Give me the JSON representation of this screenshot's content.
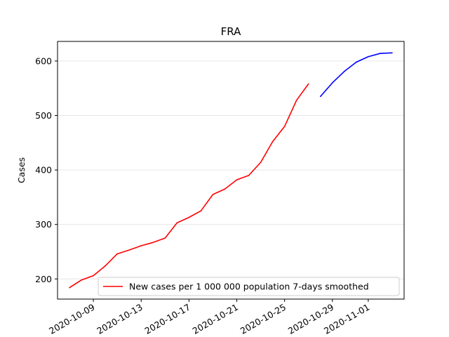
{
  "chart_data": {
    "type": "line",
    "title": "FRA",
    "xlabel": "",
    "ylabel": "Cases",
    "x_axis_type": "date",
    "xlim": [
      "2020-10-06",
      "2020-11-04"
    ],
    "ylim": [
      163,
      636
    ],
    "x_ticks": [
      "2020-10-09",
      "2020-10-13",
      "2020-10-17",
      "2020-10-21",
      "2020-10-25",
      "2020-10-29",
      "2020-11-01"
    ],
    "y_ticks": [
      200,
      300,
      400,
      500,
      600
    ],
    "grid": "horizontal",
    "legend_position": "lower-right",
    "series": [
      {
        "name": "New cases per 1 000 000 population 7-days smoothed",
        "color": "#ff0000",
        "in_legend": true,
        "x": [
          "2020-10-07",
          "2020-10-08",
          "2020-10-09",
          "2020-10-10",
          "2020-10-11",
          "2020-10-12",
          "2020-10-13",
          "2020-10-14",
          "2020-10-15",
          "2020-10-16",
          "2020-10-17",
          "2020-10-18",
          "2020-10-19",
          "2020-10-20",
          "2020-10-21",
          "2020-10-22",
          "2020-10-23",
          "2020-10-24",
          "2020-10-25",
          "2020-10-26",
          "2020-10-27"
        ],
        "y": [
          184,
          198,
          206,
          224,
          246,
          253,
          261,
          267,
          275,
          303,
          313,
          325,
          355,
          365,
          382,
          390,
          414,
          452,
          480,
          528,
          558
        ]
      },
      {
        "name": "",
        "color": "#0000ff",
        "in_legend": false,
        "x": [
          "2020-10-28",
          "2020-10-29",
          "2020-10-30",
          "2020-10-31",
          "2020-11-01",
          "2020-11-02",
          "2020-11-03"
        ],
        "y": [
          535,
          560,
          581,
          598,
          608,
          614,
          615
        ]
      }
    ]
  }
}
